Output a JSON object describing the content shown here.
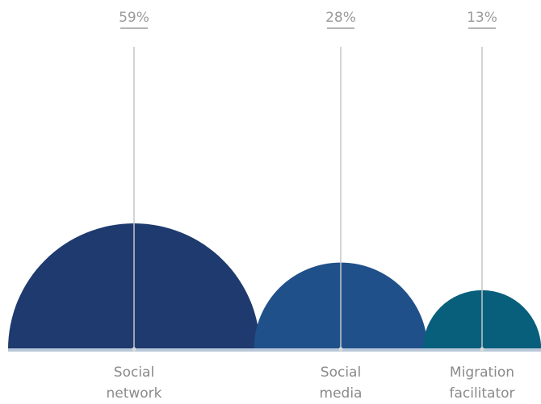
{
  "chart_data": {
    "type": "bar",
    "categories": [
      {
        "lines": [
          "Social",
          "network"
        ]
      },
      {
        "lines": [
          "Social",
          "media"
        ]
      },
      {
        "lines": [
          "Migration",
          "facilitator"
        ]
      }
    ],
    "values": [
      59,
      28,
      13
    ],
    "value_labels": [
      "59%",
      "28%",
      "13%"
    ],
    "unit": "%",
    "colors": [
      "#1e3a6e",
      "#20508a",
      "#075f7c"
    ],
    "baseline_color": "#b8c8d8",
    "leader_color": "#c6c6c6",
    "grid": false,
    "legend": "none"
  }
}
